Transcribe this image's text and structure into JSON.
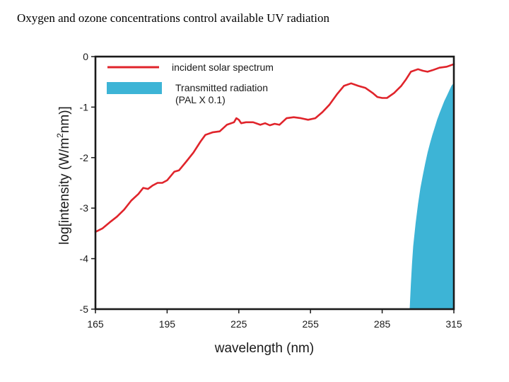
{
  "slide": {
    "title": "Oxygen and ozone concentrations control available UV radiation"
  },
  "chart_data": {
    "type": "line",
    "xlabel": "wavelength (nm)",
    "ylabel_prefix": "log[intensity (W/m",
    "ylabel_sup": "2",
    "ylabel_suffix": "nm)]",
    "xlim": [
      165,
      315
    ],
    "ylim": [
      -5,
      0
    ],
    "xticks": [
      165,
      195,
      225,
      255,
      285,
      315
    ],
    "yticks": [
      0,
      -1,
      -2,
      -3,
      -4,
      -5
    ],
    "legend_position": "top-left",
    "series": [
      {
        "name": "incident solar spectrum",
        "kind": "line",
        "color": "#e0242b",
        "x": [
          165,
          168,
          171,
          174,
          177,
          180,
          183,
          185,
          187,
          189,
          191,
          193,
          195,
          198,
          200,
          203,
          206,
          209,
          211,
          214,
          217,
          220,
          223,
          224,
          225,
          226,
          228,
          231,
          234,
          236,
          238,
          240,
          242,
          245,
          248,
          251,
          254,
          257,
          260,
          263,
          266,
          269,
          272,
          275,
          278,
          281,
          283,
          285,
          287,
          290,
          293,
          295,
          297,
          300,
          302,
          304,
          306,
          309,
          312,
          315
        ],
        "y": [
          -3.47,
          -3.4,
          -3.28,
          -3.17,
          -3.03,
          -2.85,
          -2.72,
          -2.6,
          -2.62,
          -2.55,
          -2.5,
          -2.5,
          -2.45,
          -2.28,
          -2.25,
          -2.08,
          -1.9,
          -1.68,
          -1.55,
          -1.5,
          -1.48,
          -1.35,
          -1.3,
          -1.22,
          -1.25,
          -1.32,
          -1.3,
          -1.3,
          -1.35,
          -1.32,
          -1.36,
          -1.33,
          -1.35,
          -1.22,
          -1.2,
          -1.22,
          -1.25,
          -1.22,
          -1.1,
          -0.95,
          -0.75,
          -0.58,
          -0.53,
          -0.58,
          -0.62,
          -0.72,
          -0.8,
          -0.82,
          -0.82,
          -0.72,
          -0.58,
          -0.45,
          -0.3,
          -0.25,
          -0.28,
          -0.3,
          -0.27,
          -0.22,
          -0.2,
          -0.15
        ]
      },
      {
        "name_line1": "Transmitted radiation",
        "name_line2": "(PAL X 0.1)",
        "kind": "area",
        "color": "#3db4d6",
        "x": [
          296.5,
          297,
          297.5,
          298,
          299,
          300,
          301,
          302,
          303,
          304,
          305,
          306,
          307,
          308,
          309,
          310,
          311,
          312,
          313,
          314,
          315
        ],
        "y": [
          -5.0,
          -4.5,
          -4.1,
          -3.75,
          -3.3,
          -2.92,
          -2.6,
          -2.35,
          -2.12,
          -1.9,
          -1.72,
          -1.55,
          -1.4,
          -1.25,
          -1.12,
          -1.0,
          -0.88,
          -0.78,
          -0.68,
          -0.58,
          -0.52
        ]
      }
    ]
  }
}
